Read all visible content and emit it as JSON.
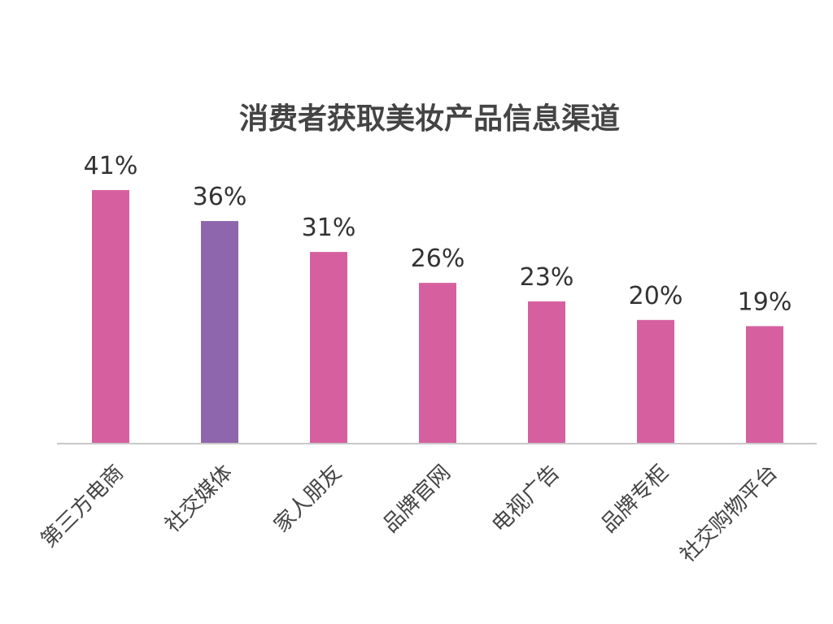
{
  "chart_data": {
    "type": "bar",
    "title": "消费者获取美妆产品信息渠道",
    "categories": [
      "第三方电商",
      "社交媒体",
      "家人朋友",
      "品牌官网",
      "电视广告",
      "品牌专柜",
      "社交购物平台"
    ],
    "values": [
      41,
      36,
      31,
      26,
      23,
      20,
      19
    ],
    "value_labels": [
      "41%",
      "36%",
      "31%",
      "26%",
      "23%",
      "20%",
      "19%"
    ],
    "unit": "%",
    "ylim": [
      0,
      41
    ],
    "grid": false,
    "legend": "none",
    "bar_colors": [
      "#d6609f",
      "#8e66ab",
      "#d6609f",
      "#d6609f",
      "#d6609f",
      "#d6609f",
      "#d6609f"
    ],
    "axis_color": "#c8c8c8"
  }
}
